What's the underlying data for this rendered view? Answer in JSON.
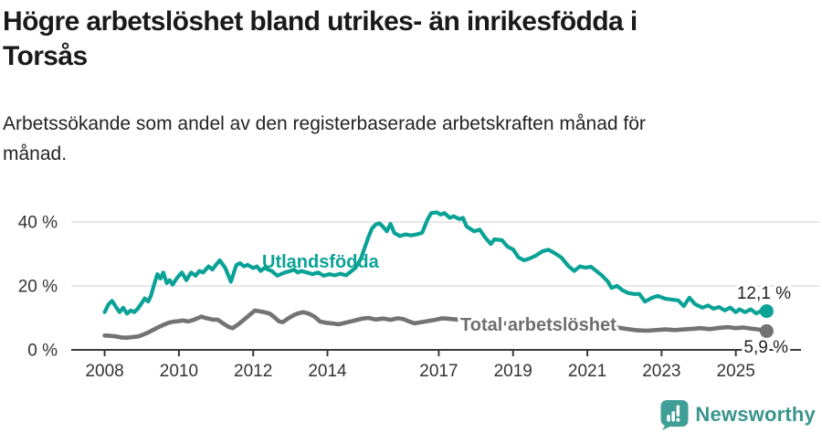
{
  "header": {
    "title_lines": [
      "Högre arbetslöshet bland utrikes- än inrikesfödda i",
      "Torsås"
    ],
    "subtitle_lines": [
      "Arbetssökande som andel av den registerbaserade arbetskraften månad för",
      "månad."
    ]
  },
  "footer": {
    "brand": "Newsworthy",
    "logo_icon": "newsworthy-pin-barchart-icon"
  },
  "colors": {
    "accent_teal": "#0aa296",
    "series_gray": "#737373",
    "axis": "#3a3a3a",
    "gridline": "#dadada",
    "logo_badge_teal": "#3f9e96",
    "logo_text_teal": "#3a948e"
  },
  "chart_data": {
    "type": "line",
    "title": "Högre arbetslöshet bland utrikes- än inrikesfödda i Torsås",
    "subtitle": "Arbetssökande som andel av den registerbaserade arbetskraften månad för månad.",
    "x_axis": {
      "range": [
        2008,
        2025.9
      ],
      "ticks": [
        {
          "v": 2008,
          "label": "2008"
        },
        {
          "v": 2010,
          "label": "2010"
        },
        {
          "v": 2012,
          "label": "2012"
        },
        {
          "v": 2014,
          "label": "2014"
        },
        {
          "v": 2017,
          "label": "2017"
        },
        {
          "v": 2019,
          "label": "2019"
        },
        {
          "v": 2021,
          "label": "2021"
        },
        {
          "v": 2023,
          "label": "2023"
        },
        {
          "v": 2025,
          "label": "2025"
        }
      ]
    },
    "y_axis": {
      "unit": "%",
      "range": [
        0,
        44
      ],
      "ticks": [
        {
          "v": 0,
          "label": "0 %"
        },
        {
          "v": 20,
          "label": "20 %"
        },
        {
          "v": 40,
          "label": "40 %"
        }
      ]
    },
    "series": [
      {
        "name": "Utlandsfödda",
        "color": "#0aa296",
        "end_label": "12,1 %",
        "end_value": 12.1,
        "points": [
          [
            2008.0,
            11.8
          ],
          [
            2008.1,
            14.2
          ],
          [
            2008.2,
            15.3
          ],
          [
            2008.3,
            13.5
          ],
          [
            2008.4,
            11.8
          ],
          [
            2008.5,
            13.2
          ],
          [
            2008.6,
            11.3
          ],
          [
            2008.7,
            12.3
          ],
          [
            2008.8,
            11.8
          ],
          [
            2008.9,
            13.0
          ],
          [
            2009.0,
            14.7
          ],
          [
            2009.08,
            16.1
          ],
          [
            2009.17,
            15.1
          ],
          [
            2009.25,
            17.0
          ],
          [
            2009.33,
            20.4
          ],
          [
            2009.42,
            23.7
          ],
          [
            2009.5,
            22.3
          ],
          [
            2009.58,
            24.2
          ],
          [
            2009.67,
            20.9
          ],
          [
            2009.75,
            21.8
          ],
          [
            2009.83,
            20.4
          ],
          [
            2009.92,
            22.0
          ],
          [
            2010.0,
            23.2
          ],
          [
            2010.08,
            24.2
          ],
          [
            2010.2,
            21.8
          ],
          [
            2010.33,
            24.2
          ],
          [
            2010.45,
            23.2
          ],
          [
            2010.55,
            24.7
          ],
          [
            2010.65,
            24.2
          ],
          [
            2010.8,
            26.1
          ],
          [
            2010.9,
            25.1
          ],
          [
            2011.0,
            26.6
          ],
          [
            2011.1,
            28.0
          ],
          [
            2011.25,
            25.6
          ],
          [
            2011.4,
            21.3
          ],
          [
            2011.55,
            26.6
          ],
          [
            2011.65,
            27.1
          ],
          [
            2011.75,
            26.1
          ],
          [
            2011.85,
            26.6
          ],
          [
            2012.0,
            25.6
          ],
          [
            2012.1,
            26.1
          ],
          [
            2012.2,
            24.7
          ],
          [
            2012.3,
            25.6
          ],
          [
            2012.4,
            25.1
          ],
          [
            2012.5,
            24.7
          ],
          [
            2012.65,
            23.2
          ],
          [
            2012.75,
            23.7
          ],
          [
            2012.85,
            24.2
          ],
          [
            2013.0,
            24.7
          ],
          [
            2013.1,
            25.1
          ],
          [
            2013.2,
            24.2
          ],
          [
            2013.3,
            24.7
          ],
          [
            2013.45,
            24.2
          ],
          [
            2013.6,
            23.7
          ],
          [
            2013.75,
            24.2
          ],
          [
            2013.9,
            23.2
          ],
          [
            2014.05,
            23.7
          ],
          [
            2014.2,
            23.3
          ],
          [
            2014.35,
            23.8
          ],
          [
            2014.5,
            23.3
          ],
          [
            2014.6,
            24.2
          ],
          [
            2014.75,
            25.6
          ],
          [
            2014.9,
            28.5
          ],
          [
            2015.0,
            31.8
          ],
          [
            2015.1,
            35.1
          ],
          [
            2015.2,
            38.0
          ],
          [
            2015.3,
            39.2
          ],
          [
            2015.4,
            39.6
          ],
          [
            2015.5,
            38.5
          ],
          [
            2015.6,
            37.1
          ],
          [
            2015.7,
            39.4
          ],
          [
            2015.8,
            36.6
          ],
          [
            2015.95,
            35.6
          ],
          [
            2016.1,
            36.1
          ],
          [
            2016.25,
            35.8
          ],
          [
            2016.4,
            36.1
          ],
          [
            2016.55,
            36.6
          ],
          [
            2016.7,
            40.9
          ],
          [
            2016.8,
            42.8
          ],
          [
            2016.95,
            43.0
          ],
          [
            2017.05,
            42.3
          ],
          [
            2017.15,
            42.8
          ],
          [
            2017.3,
            41.3
          ],
          [
            2017.4,
            41.8
          ],
          [
            2017.55,
            40.9
          ],
          [
            2017.65,
            41.3
          ],
          [
            2017.75,
            38.6
          ],
          [
            2017.95,
            37.1
          ],
          [
            2018.1,
            37.6
          ],
          [
            2018.25,
            35.1
          ],
          [
            2018.4,
            33.1
          ],
          [
            2018.5,
            34.6
          ],
          [
            2018.7,
            34.3
          ],
          [
            2018.85,
            32.3
          ],
          [
            2019.0,
            31.4
          ],
          [
            2019.15,
            28.9
          ],
          [
            2019.3,
            28.0
          ],
          [
            2019.45,
            28.6
          ],
          [
            2019.6,
            29.4
          ],
          [
            2019.8,
            30.9
          ],
          [
            2019.95,
            31.3
          ],
          [
            2020.1,
            30.4
          ],
          [
            2020.3,
            28.9
          ],
          [
            2020.5,
            26.1
          ],
          [
            2020.65,
            24.7
          ],
          [
            2020.8,
            26.1
          ],
          [
            2020.95,
            25.7
          ],
          [
            2021.1,
            26.0
          ],
          [
            2021.25,
            24.6
          ],
          [
            2021.4,
            23.2
          ],
          [
            2021.55,
            21.4
          ],
          [
            2021.65,
            19.4
          ],
          [
            2021.8,
            20.0
          ],
          [
            2021.95,
            18.6
          ],
          [
            2022.1,
            17.8
          ],
          [
            2022.25,
            17.5
          ],
          [
            2022.4,
            17.5
          ],
          [
            2022.55,
            15.1
          ],
          [
            2022.75,
            16.3
          ],
          [
            2022.9,
            16.9
          ],
          [
            2023.1,
            16.0
          ],
          [
            2023.3,
            15.7
          ],
          [
            2023.45,
            15.5
          ],
          [
            2023.6,
            13.7
          ],
          [
            2023.75,
            16.3
          ],
          [
            2023.9,
            14.3
          ],
          [
            2024.1,
            13.2
          ],
          [
            2024.25,
            13.9
          ],
          [
            2024.4,
            12.9
          ],
          [
            2024.55,
            13.4
          ],
          [
            2024.7,
            12.3
          ],
          [
            2024.85,
            13.2
          ],
          [
            2025.0,
            11.8
          ],
          [
            2025.1,
            12.7
          ],
          [
            2025.25,
            11.8
          ],
          [
            2025.4,
            12.7
          ],
          [
            2025.55,
            11.4
          ],
          [
            2025.7,
            12.3
          ],
          [
            2025.83,
            12.1
          ]
        ]
      },
      {
        "name": "Total arbetslöshet",
        "color": "#737373",
        "end_label": "5,9 %",
        "end_value": 5.9,
        "points": [
          [
            2008.0,
            4.5
          ],
          [
            2008.15,
            4.4
          ],
          [
            2008.3,
            4.2
          ],
          [
            2008.45,
            3.9
          ],
          [
            2008.6,
            3.8
          ],
          [
            2008.75,
            4.0
          ],
          [
            2008.9,
            4.2
          ],
          [
            2009.0,
            4.6
          ],
          [
            2009.15,
            5.3
          ],
          [
            2009.3,
            6.2
          ],
          [
            2009.45,
            7.1
          ],
          [
            2009.6,
            7.9
          ],
          [
            2009.75,
            8.6
          ],
          [
            2009.9,
            8.9
          ],
          [
            2010.0,
            9.0
          ],
          [
            2010.1,
            9.2
          ],
          [
            2010.25,
            8.9
          ],
          [
            2010.4,
            9.4
          ],
          [
            2010.6,
            10.4
          ],
          [
            2010.75,
            9.9
          ],
          [
            2010.9,
            9.5
          ],
          [
            2011.05,
            9.4
          ],
          [
            2011.2,
            8.2
          ],
          [
            2011.35,
            7.1
          ],
          [
            2011.45,
            6.8
          ],
          [
            2011.6,
            8.0
          ],
          [
            2011.75,
            9.4
          ],
          [
            2011.9,
            10.9
          ],
          [
            2012.05,
            12.3
          ],
          [
            2012.15,
            12.1
          ],
          [
            2012.3,
            11.8
          ],
          [
            2012.45,
            11.3
          ],
          [
            2012.55,
            10.4
          ],
          [
            2012.7,
            8.9
          ],
          [
            2012.8,
            8.7
          ],
          [
            2012.95,
            9.9
          ],
          [
            2013.1,
            10.9
          ],
          [
            2013.2,
            11.4
          ],
          [
            2013.35,
            11.8
          ],
          [
            2013.5,
            11.3
          ],
          [
            2013.65,
            10.4
          ],
          [
            2013.8,
            8.9
          ],
          [
            2013.95,
            8.5
          ],
          [
            2014.1,
            8.3
          ],
          [
            2014.3,
            8.0
          ],
          [
            2014.45,
            8.4
          ],
          [
            2014.6,
            8.8
          ],
          [
            2014.8,
            9.4
          ],
          [
            2014.95,
            9.8
          ],
          [
            2015.1,
            10.0
          ],
          [
            2015.3,
            9.5
          ],
          [
            2015.5,
            9.8
          ],
          [
            2015.7,
            9.4
          ],
          [
            2015.9,
            9.9
          ],
          [
            2016.05,
            9.6
          ],
          [
            2016.2,
            8.9
          ],
          [
            2016.35,
            8.3
          ],
          [
            2016.5,
            8.6
          ],
          [
            2016.7,
            9.0
          ],
          [
            2016.9,
            9.4
          ],
          [
            2017.1,
            9.9
          ],
          [
            2017.3,
            9.7
          ],
          [
            2017.5,
            9.5
          ],
          [
            2017.75,
            9.2
          ],
          [
            2018.0,
            8.9
          ],
          [
            2018.3,
            8.6
          ],
          [
            2018.6,
            8.4
          ],
          [
            2018.9,
            8.2
          ],
          [
            2019.2,
            8.0
          ],
          [
            2019.5,
            7.8
          ],
          [
            2019.8,
            8.0
          ],
          [
            2020.1,
            8.5
          ],
          [
            2020.4,
            8.9
          ],
          [
            2020.6,
            8.7
          ],
          [
            2020.9,
            8.4
          ],
          [
            2021.2,
            7.9
          ],
          [
            2021.5,
            7.4
          ],
          [
            2021.8,
            7.0
          ],
          [
            2022.1,
            6.5
          ],
          [
            2022.35,
            6.1
          ],
          [
            2022.6,
            6.0
          ],
          [
            2022.85,
            6.2
          ],
          [
            2023.1,
            6.4
          ],
          [
            2023.35,
            6.2
          ],
          [
            2023.6,
            6.4
          ],
          [
            2023.85,
            6.6
          ],
          [
            2024.05,
            6.8
          ],
          [
            2024.3,
            6.5
          ],
          [
            2024.55,
            6.9
          ],
          [
            2024.8,
            7.1
          ],
          [
            2025.0,
            6.8
          ],
          [
            2025.2,
            7.0
          ],
          [
            2025.4,
            6.7
          ],
          [
            2025.6,
            6.4
          ],
          [
            2025.83,
            5.9
          ]
        ]
      }
    ]
  }
}
